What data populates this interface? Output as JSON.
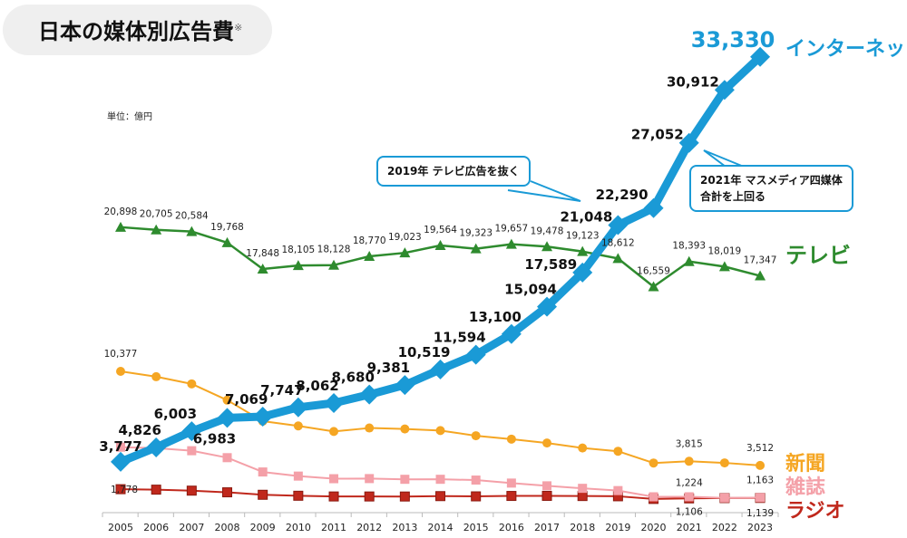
{
  "title": "日本の媒体別広告費",
  "title_note": "※",
  "unit": "単位：億円",
  "callouts": [
    "2019年 テレビ広告を抜く",
    "2021年 マスメディア四媒体\n合計を上回る"
  ],
  "chart_data": {
    "type": "line",
    "categories": [
      "2005",
      "2006",
      "2007",
      "2008",
      "2009",
      "2010",
      "2011",
      "2012",
      "2013",
      "2014",
      "2015",
      "2016",
      "2017",
      "2018",
      "2019",
      "2020",
      "2021",
      "2022",
      "2023"
    ],
    "ylabel": "単位：億円",
    "grid": false,
    "series": [
      {
        "name": "インターネット",
        "color": "#1a9ad6",
        "marker": "diamond",
        "values": [
          3777,
          4826,
          6003,
          6983,
          7069,
          7747,
          8062,
          8680,
          9381,
          10519,
          11594,
          13100,
          15094,
          17589,
          21048,
          22290,
          27052,
          30912,
          33330
        ],
        "labels": [
          "3,777",
          "4,826",
          "6,003",
          "6,983",
          "7,069",
          "7,747",
          "8,062",
          "8,680",
          "9,381",
          "10,519",
          "11,594",
          "13,100",
          "15,094",
          "17,589",
          "21,048",
          "22,290",
          "27,052",
          "30,912",
          "33,330"
        ]
      },
      {
        "name": "テレビ",
        "color": "#2e8b2e",
        "marker": "triangle",
        "values": [
          20898,
          20705,
          20584,
          19768,
          17848,
          18105,
          18128,
          18770,
          19023,
          19564,
          19323,
          19657,
          19478,
          19123,
          18612,
          16559,
          18393,
          18019,
          17347
        ],
        "labels": [
          "20,898",
          "20,705",
          "20,584",
          "19,768",
          "17,848",
          "18,105",
          "18,128",
          "18,770",
          "19,023",
          "19,564",
          "19,323",
          "19,657",
          "19,478",
          "19,123",
          "18,612",
          "16,559",
          "18,393",
          "18,019",
          "17,347"
        ]
      },
      {
        "name": "新聞",
        "color": "#f5a623",
        "marker": "circle",
        "values": [
          10377,
          9986,
          9462,
          8276,
          6739,
          6396,
          5990,
          6242,
          6170,
          6057,
          5679,
          5431,
          5147,
          4784,
          4547,
          3688,
          3815,
          3697,
          3512
        ],
        "labels": {
          "0": "10,377",
          "16": "3,815",
          "18": "3,512"
        }
      },
      {
        "name": "雑誌",
        "color": "#f4a0a8",
        "marker": "square",
        "values": [
          4842,
          4777,
          4585,
          4078,
          3034,
          2733,
          2542,
          2551,
          2499,
          2500,
          2443,
          2223,
          2023,
          1841,
          1675,
          1223,
          1224,
          1140,
          1163
        ],
        "labels": {
          "16": "1,224",
          "18": "1,163"
        }
      },
      {
        "name": "ラジオ",
        "color": "#c0281c",
        "marker": "square",
        "values": [
          1778,
          1744,
          1671,
          1549,
          1370,
          1299,
          1247,
          1246,
          1243,
          1272,
          1254,
          1285,
          1290,
          1278,
          1260,
          1066,
          1106,
          1129,
          1139
        ],
        "labels": {
          "0": "1,778",
          "16": "1,106",
          "18": "1,139"
        }
      }
    ]
  }
}
